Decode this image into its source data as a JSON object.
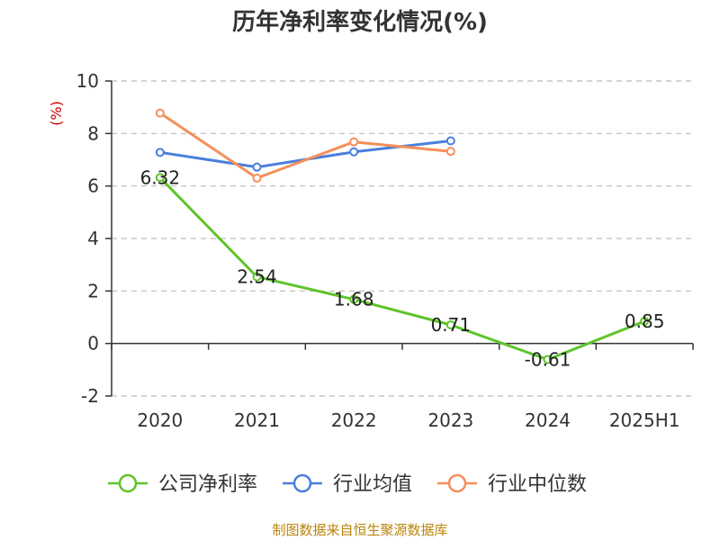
{
  "chart_data": {
    "type": "line",
    "title": "历年净利率变化情况(%)",
    "ylabel": "(%)",
    "categories": [
      "2020",
      "2021",
      "2022",
      "2023",
      "2024",
      "2025H1"
    ],
    "ylim": [
      -2,
      10
    ],
    "yticks": [
      -2,
      0,
      2,
      4,
      6,
      8,
      10
    ],
    "grid": true,
    "legend_position": "bottom",
    "series": [
      {
        "name": "公司净利率",
        "color": "#5ec42b",
        "values": [
          6.32,
          2.54,
          1.68,
          0.71,
          -0.61,
          0.85
        ],
        "labels": [
          "6.32",
          "2.54",
          "1.68",
          "0.71",
          "-0.61",
          "0.85"
        ]
      },
      {
        "name": "行业均值",
        "color": "#4a7fdc",
        "values": [
          7.28,
          6.72,
          7.3,
          7.72,
          null,
          null
        ]
      },
      {
        "name": "行业中位数",
        "color": "#f58f5b",
        "values": [
          8.78,
          6.3,
          7.68,
          7.32,
          null,
          null
        ]
      }
    ],
    "source": "制图数据来自恒生聚源数据库"
  }
}
